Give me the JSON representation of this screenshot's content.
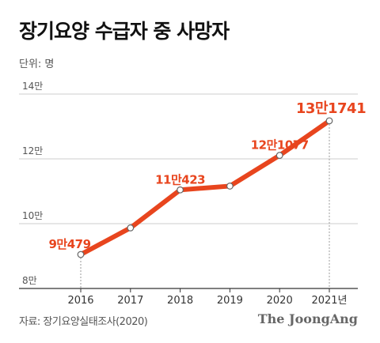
{
  "header": {
    "title": "장기요양 수급자 중 사망자",
    "unit_label": "단위: 명"
  },
  "footer": {
    "source": "자료: 장기요양실태조사(2020)",
    "brand": "The JoongAng"
  },
  "colors": {
    "line": "#e8451e",
    "axis": "#333333",
    "grid": "#cccccc",
    "tick_text": "#555555"
  },
  "chart_data": {
    "type": "line",
    "title": "장기요양 수급자 중 사망자",
    "xlabel": "",
    "ylabel": "",
    "x": [
      "2016",
      "2017",
      "2018",
      "2019",
      "2020",
      "2021년"
    ],
    "y_ticks": [
      {
        "value": 80000,
        "label": "8만"
      },
      {
        "value": 100000,
        "label": "10만"
      },
      {
        "value": 120000,
        "label": "12만"
      },
      {
        "value": 140000,
        "label": "14만"
      }
    ],
    "ylim": [
      80000,
      140000
    ],
    "grid": true,
    "series": [
      {
        "values": [
          90479,
          98700,
          110423,
          111600,
          121077,
          131741
        ],
        "labels": [
          "9만479",
          "",
          "11만423",
          "",
          "12만1077",
          "13만1741"
        ]
      }
    ]
  }
}
